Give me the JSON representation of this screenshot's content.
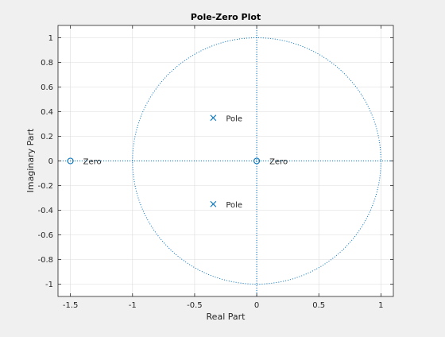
{
  "chart_data": {
    "type": "scatter",
    "title": "Pole-Zero Plot",
    "xlabel": "Real Part",
    "ylabel": "Imaginary Part",
    "xlim": [
      -1.6,
      1.1
    ],
    "ylim": [
      -1.1,
      1.1
    ],
    "x_ticks": [
      -1.5,
      -1,
      -0.5,
      0,
      0.5,
      1
    ],
    "x_tick_labels": [
      "-1.5",
      "-1",
      "-0.5",
      "0",
      "0.5",
      "1"
    ],
    "y_ticks": [
      1,
      0.8,
      0.6,
      0.4,
      0.2,
      0,
      -0.2,
      -0.4,
      -0.6,
      -0.8,
      -1
    ],
    "y_tick_labels": [
      "1",
      "0.8",
      "0.6",
      "0.4",
      "0.2",
      "0",
      "-0.2",
      "-0.4",
      "-0.6",
      "-0.8",
      "-1"
    ],
    "grid": true,
    "unit_circle": true,
    "series": [
      {
        "marker": "x",
        "color": "#0072BD",
        "points": [
          {
            "x": -0.35,
            "y": 0.35,
            "label": "Pole"
          },
          {
            "x": -0.35,
            "y": -0.35,
            "label": "Pole"
          }
        ]
      },
      {
        "marker": "o",
        "color": "#0072BD",
        "points": [
          {
            "x": -1.5,
            "y": 0,
            "label": "Zero"
          },
          {
            "x": 0,
            "y": 0,
            "label": "Zero"
          }
        ]
      }
    ]
  }
}
